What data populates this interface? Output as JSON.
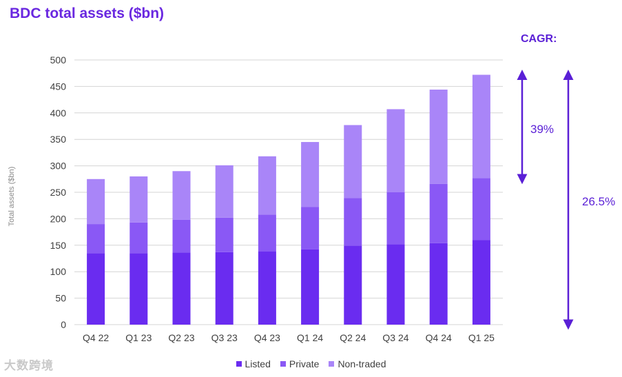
{
  "page_title": "BDC total assets ($bn)",
  "cagr_header": "CAGR:",
  "cagr": [
    {
      "value": "39%",
      "from": 275,
      "to": 472
    },
    {
      "value": "26.5%",
      "from": 0,
      "to": 472
    }
  ],
  "watermark": "大数跨境",
  "colors": {
    "accent": "#6a28e0",
    "cagr": "#5a1fd6",
    "arrow": "#5a1fd6"
  },
  "chart_data": {
    "type": "bar",
    "stacked": true,
    "title": "BDC total assets ($bn)",
    "ylabel": "Total assets ($bn)",
    "xlabel": "",
    "ylim": [
      0,
      500
    ],
    "yticks": [
      0,
      50,
      100,
      150,
      200,
      250,
      300,
      350,
      400,
      450,
      500
    ],
    "grid": true,
    "legend_position": "bottom-center",
    "categories": [
      "Q4 22",
      "Q1 23",
      "Q2 23",
      "Q3 23",
      "Q4 23",
      "Q1 24",
      "Q2 24",
      "Q3 24",
      "Q4 24",
      "Q1 25"
    ],
    "series": [
      {
        "name": "Listed",
        "color": "#6a2cf0",
        "values": [
          135,
          135,
          136,
          137,
          138,
          142,
          149,
          152,
          154,
          160
        ]
      },
      {
        "name": "Private",
        "color": "#8a58f5",
        "values": [
          55,
          58,
          62,
          65,
          70,
          80,
          90,
          98,
          112,
          117
        ]
      },
      {
        "name": "Non-traded",
        "color": "#a985f8",
        "values": [
          85,
          87,
          92,
          99,
          110,
          123,
          138,
          157,
          178,
          195
        ]
      }
    ]
  }
}
